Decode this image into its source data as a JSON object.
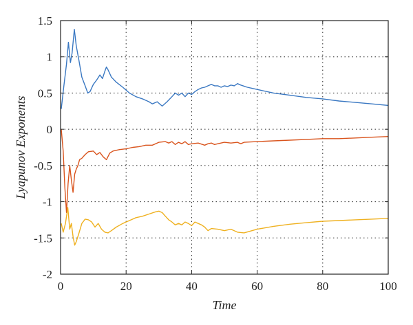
{
  "chart_data": {
    "type": "line",
    "title": "",
    "xlabel": "Time",
    "ylabel": "Lyapunov Exponents",
    "xlim": [
      0,
      100
    ],
    "ylim": [
      -2,
      1.5
    ],
    "xticks": [
      0,
      20,
      40,
      60,
      80,
      100
    ],
    "yticks": [
      -2,
      -1.5,
      -1,
      -0.5,
      0,
      0.5,
      1,
      1.5
    ],
    "xtick_labels": [
      "0",
      "20",
      "40",
      "60",
      "80",
      "100"
    ],
    "ytick_labels": [
      "-2",
      "-1.5",
      "-1",
      "-0.5",
      "0",
      "0.5",
      "1",
      "1.5"
    ],
    "grid": true,
    "series": [
      {
        "color": "#3a78c2",
        "x": [
          0.2,
          1,
          1.8,
          2.4,
          3,
          3.5,
          4.2,
          4.8,
          5.6,
          6.5,
          7.5,
          8.3,
          9,
          10,
          11,
          12,
          12.8,
          13.5,
          14,
          14.5,
          15.5,
          17,
          19,
          21,
          23,
          25,
          27,
          28,
          29.5,
          31,
          32.5,
          34,
          35,
          36,
          37,
          38,
          39,
          40,
          41,
          42,
          43,
          44,
          45,
          46,
          47,
          48,
          49,
          50,
          51,
          52,
          53,
          54,
          55,
          57,
          60,
          65,
          70,
          75,
          80,
          85,
          90,
          95,
          100
        ],
        "values": [
          0.28,
          0.6,
          0.9,
          1.2,
          0.92,
          1.05,
          1.38,
          1.15,
          0.95,
          0.72,
          0.6,
          0.5,
          0.52,
          0.62,
          0.68,
          0.75,
          0.7,
          0.8,
          0.86,
          0.82,
          0.72,
          0.65,
          0.58,
          0.5,
          0.45,
          0.42,
          0.38,
          0.35,
          0.38,
          0.32,
          0.38,
          0.45,
          0.5,
          0.47,
          0.5,
          0.45,
          0.5,
          0.48,
          0.52,
          0.55,
          0.57,
          0.58,
          0.6,
          0.62,
          0.6,
          0.6,
          0.58,
          0.6,
          0.59,
          0.61,
          0.6,
          0.63,
          0.61,
          0.58,
          0.55,
          0.5,
          0.47,
          0.44,
          0.42,
          0.39,
          0.37,
          0.35,
          0.33
        ]
      },
      {
        "color": "#d9541d",
        "x": [
          0.2,
          0.8,
          1.3,
          1.8,
          2.3,
          2.8,
          3.3,
          3.8,
          4.3,
          4.8,
          5.3,
          5.8,
          6.5,
          7.5,
          8.5,
          10,
          11,
          12,
          13,
          14,
          15,
          16,
          18,
          20,
          22,
          24,
          26,
          28,
          30,
          32,
          33,
          34,
          35,
          36,
          37,
          38,
          39,
          40,
          42,
          44,
          45,
          46,
          47,
          48,
          50,
          52,
          54,
          55,
          56,
          60,
          65,
          70,
          75,
          80,
          85,
          90,
          95,
          100
        ],
        "values": [
          0,
          -0.3,
          -0.8,
          -1.15,
          -0.75,
          -0.5,
          -0.7,
          -0.87,
          -0.62,
          -0.55,
          -0.5,
          -0.42,
          -0.4,
          -0.35,
          -0.31,
          -0.3,
          -0.35,
          -0.32,
          -0.38,
          -0.42,
          -0.33,
          -0.3,
          -0.28,
          -0.27,
          -0.25,
          -0.24,
          -0.22,
          -0.22,
          -0.18,
          -0.17,
          -0.19,
          -0.17,
          -0.21,
          -0.18,
          -0.2,
          -0.17,
          -0.21,
          -0.2,
          -0.19,
          -0.22,
          -0.2,
          -0.19,
          -0.21,
          -0.2,
          -0.18,
          -0.19,
          -0.18,
          -0.2,
          -0.18,
          -0.17,
          -0.16,
          -0.15,
          -0.14,
          -0.13,
          -0.13,
          -0.12,
          -0.11,
          -0.1
        ]
      },
      {
        "color": "#efb120",
        "x": [
          0.2,
          0.8,
          1.5,
          2.2,
          2.8,
          3.3,
          3.8,
          4.3,
          4.8,
          5.5,
          6.5,
          7.5,
          8.5,
          9.5,
          10.5,
          11.5,
          12.5,
          13.5,
          14.5,
          15.5,
          17,
          19,
          21,
          23,
          25,
          27,
          29,
          30,
          31,
          32,
          33,
          34,
          35,
          36,
          37,
          38,
          39,
          40,
          41,
          42,
          43,
          44,
          45,
          46,
          48,
          50,
          52,
          54,
          56,
          60,
          65,
          70,
          75,
          80,
          85,
          90,
          95,
          100
        ],
        "values": [
          -1.3,
          -1.42,
          -1.3,
          -1.08,
          -1.38,
          -1.3,
          -1.48,
          -1.6,
          -1.55,
          -1.45,
          -1.3,
          -1.24,
          -1.25,
          -1.28,
          -1.35,
          -1.3,
          -1.38,
          -1.42,
          -1.43,
          -1.4,
          -1.35,
          -1.3,
          -1.26,
          -1.22,
          -1.2,
          -1.17,
          -1.14,
          -1.13,
          -1.15,
          -1.2,
          -1.25,
          -1.28,
          -1.32,
          -1.3,
          -1.32,
          -1.28,
          -1.3,
          -1.33,
          -1.28,
          -1.3,
          -1.32,
          -1.35,
          -1.4,
          -1.37,
          -1.38,
          -1.4,
          -1.38,
          -1.42,
          -1.43,
          -1.38,
          -1.34,
          -1.31,
          -1.29,
          -1.27,
          -1.26,
          -1.25,
          -1.24,
          -1.23
        ]
      }
    ]
  }
}
